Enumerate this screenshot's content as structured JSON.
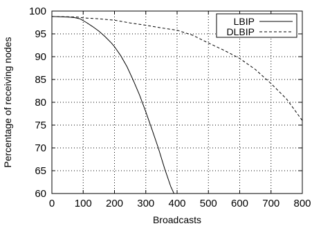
{
  "chart_data": {
    "type": "line",
    "xlabel": "Broadcasts",
    "ylabel": "Percentage of receiving nodes",
    "xlim": [
      0,
      800
    ],
    "ylim": [
      60,
      100
    ],
    "xticks": [
      0,
      100,
      200,
      300,
      400,
      500,
      600,
      700,
      800
    ],
    "yticks": [
      60,
      65,
      70,
      75,
      80,
      85,
      90,
      95,
      100
    ],
    "grid": true,
    "legend_position": "top-right",
    "series": [
      {
        "name": "LBIP",
        "style": "solid",
        "x": [
          0,
          50,
          70,
          90,
          110,
          130,
          150,
          170,
          190,
          200,
          220,
          240,
          260,
          280,
          300,
          320,
          340,
          360,
          380,
          390
        ],
        "y": [
          98.8,
          98.7,
          98.6,
          98.3,
          97.5,
          96.6,
          95.6,
          94.4,
          93.0,
          92.2,
          90.2,
          87.8,
          84.8,
          81.6,
          77.9,
          74.0,
          70.0,
          65.5,
          61.5,
          60.0
        ]
      },
      {
        "name": "DLBIP",
        "style": "dashed",
        "x": [
          0,
          80,
          100,
          150,
          200,
          250,
          300,
          350,
          400,
          450,
          500,
          550,
          600,
          650,
          700,
          750,
          800
        ],
        "y": [
          98.8,
          98.7,
          98.5,
          98.3,
          98.0,
          97.4,
          96.9,
          96.3,
          95.8,
          94.7,
          93.0,
          91.4,
          89.6,
          87.2,
          84.1,
          80.7,
          76.0
        ]
      }
    ]
  }
}
